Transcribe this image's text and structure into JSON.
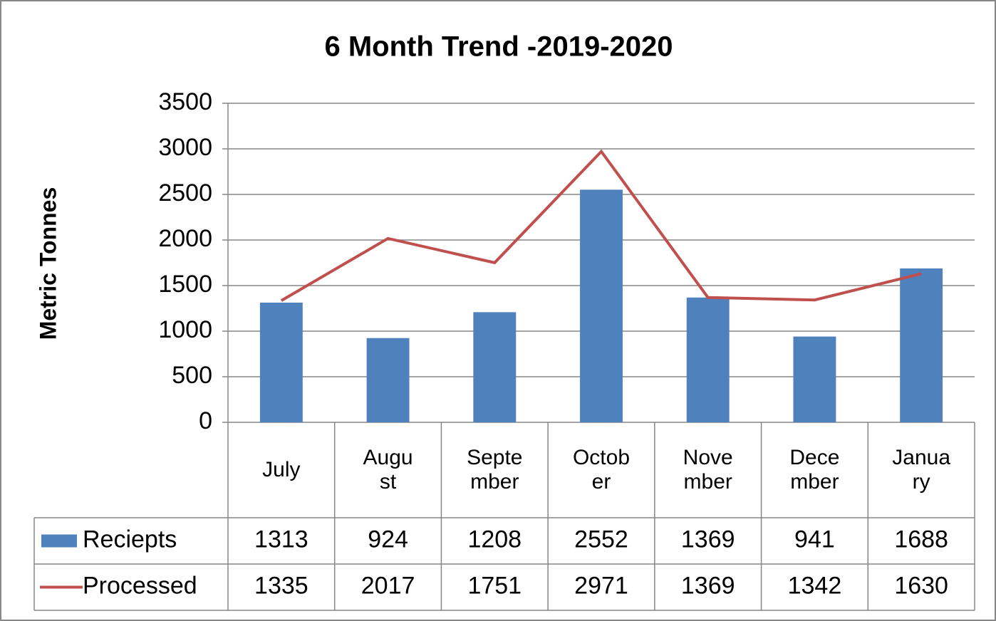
{
  "chart_data": {
    "type": "bar_line_table",
    "title": "6  Month Trend  -2019-2020",
    "y_label": "Metric Tonnes",
    "categories": [
      "July",
      "August",
      "September",
      "October",
      "November",
      "December",
      "January"
    ],
    "series": [
      {
        "name": "Reciepts",
        "type": "bar",
        "color": "#4f81bd",
        "values": [
          1313,
          924,
          1208,
          2552,
          1369,
          941,
          1688
        ]
      },
      {
        "name": "Processed",
        "type": "line",
        "color": "#c0504d",
        "values": [
          1335,
          2017,
          1751,
          2971,
          1369,
          1342,
          1630
        ]
      }
    ],
    "ylim": [
      0,
      3500
    ],
    "yticks": [
      0,
      500,
      1000,
      1500,
      2000,
      2500,
      3000,
      3500
    ],
    "grid": true
  }
}
